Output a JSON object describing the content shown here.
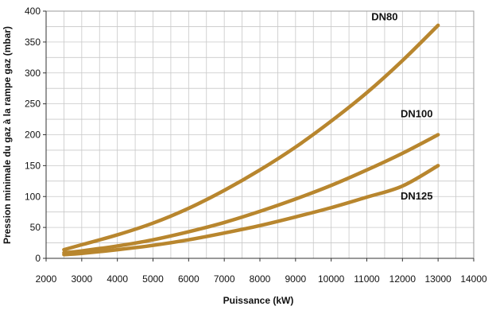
{
  "chart_data": {
    "type": "line",
    "title": "",
    "xlabel": "Puissance (kW)",
    "ylabel": "Pression minimale du gaz à la rampe gaz (mbar)",
    "xlim": [
      2000,
      14000
    ],
    "ylim": [
      0,
      400
    ],
    "xticks": [
      2000,
      3000,
      4000,
      5000,
      6000,
      7000,
      8000,
      9000,
      10000,
      11000,
      12000,
      13000,
      14000
    ],
    "yticks": [
      0,
      50,
      100,
      150,
      200,
      250,
      300,
      350,
      400
    ],
    "x_minor_step": 500,
    "y_minor_step": 25,
    "grid": true,
    "legend": "none (labels placed next to curves)",
    "series_color": "#B8862E",
    "series": [
      {
        "name": "DN80",
        "label_position": "top-right near curve end",
        "x": [
          2500,
          3000,
          4000,
          5000,
          6000,
          7000,
          8000,
          9000,
          10000,
          11000,
          12000,
          13000
        ],
        "values": [
          14,
          22,
          38,
          57,
          81,
          110,
          143,
          180,
          222,
          268,
          320,
          377
        ]
      },
      {
        "name": "DN100",
        "label_position": "right, above curve",
        "x": [
          2500,
          3000,
          4000,
          5000,
          6000,
          7000,
          8000,
          9000,
          10000,
          11000,
          12000,
          13000
        ],
        "values": [
          9,
          12,
          20,
          30,
          43,
          58,
          76,
          96,
          118,
          143,
          170,
          200
        ]
      },
      {
        "name": "DN125",
        "label_position": "right, below curve",
        "x": [
          2500,
          3000,
          4000,
          5000,
          6000,
          7000,
          8000,
          9000,
          10000,
          11000,
          12000,
          13000
        ],
        "values": [
          6,
          8,
          14,
          21,
          30,
          41,
          53,
          67,
          82,
          99,
          117,
          150
        ]
      }
    ]
  }
}
